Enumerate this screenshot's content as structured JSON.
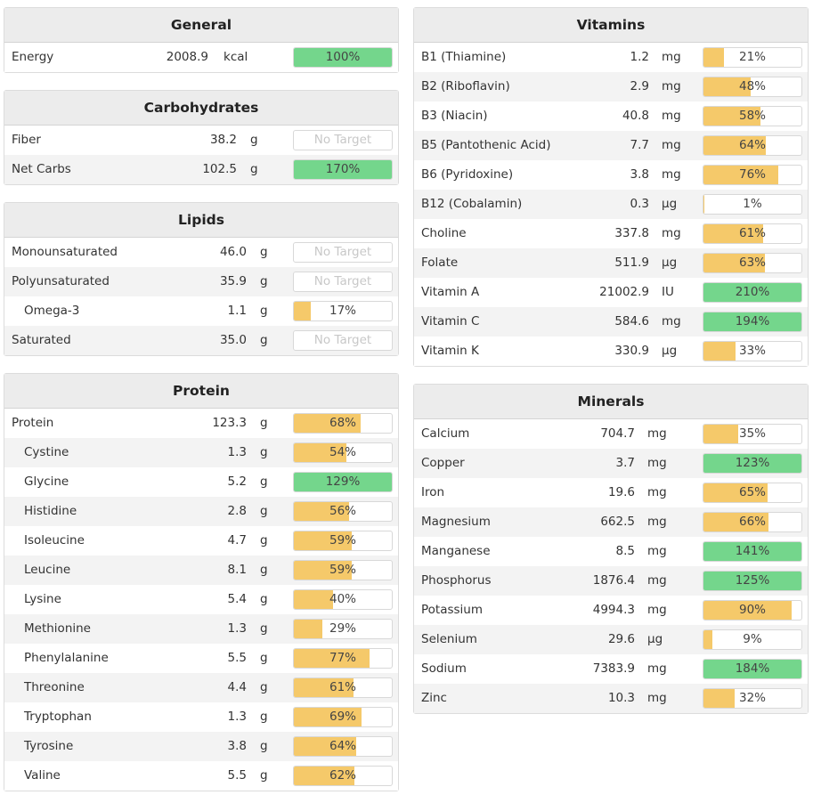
{
  "colors": {
    "high": "#74d68c",
    "low": "#f5c96a",
    "none": "#ffffff"
  },
  "general": {
    "title": "General",
    "rows": [
      {
        "name": "Energy",
        "amount": "2008.9",
        "unit": "kcal",
        "pct": "100%",
        "fill": 1.0,
        "status": "high"
      }
    ]
  },
  "carbohydrates": {
    "title": "Carbohydrates",
    "rows": [
      {
        "name": "Fiber",
        "amount": "38.2",
        "unit": "g",
        "pct": "No Target",
        "fill": 0,
        "status": "none"
      },
      {
        "name": "Net Carbs",
        "amount": "102.5",
        "unit": "g",
        "pct": "170%",
        "fill": 1.0,
        "status": "high"
      }
    ]
  },
  "lipids": {
    "title": "Lipids",
    "rows": [
      {
        "name": "Monounsaturated",
        "amount": "46.0",
        "unit": "g",
        "pct": "No Target",
        "fill": 0,
        "status": "none"
      },
      {
        "name": "Polyunsaturated",
        "amount": "35.9",
        "unit": "g",
        "pct": "No Target",
        "fill": 0,
        "status": "none"
      },
      {
        "name": "Omega-3",
        "amount": "1.1",
        "unit": "g",
        "pct": "17%",
        "fill": 0.17,
        "status": "low",
        "indent": true
      },
      {
        "name": "Saturated",
        "amount": "35.0",
        "unit": "g",
        "pct": "No Target",
        "fill": 0,
        "status": "none"
      }
    ]
  },
  "protein": {
    "title": "Protein",
    "rows": [
      {
        "name": "Protein",
        "amount": "123.3",
        "unit": "g",
        "pct": "68%",
        "fill": 0.68,
        "status": "low"
      },
      {
        "name": "Cystine",
        "amount": "1.3",
        "unit": "g",
        "pct": "54%",
        "fill": 0.54,
        "status": "low",
        "indent": true
      },
      {
        "name": "Glycine",
        "amount": "5.2",
        "unit": "g",
        "pct": "129%",
        "fill": 1.0,
        "status": "high",
        "indent": true
      },
      {
        "name": "Histidine",
        "amount": "2.8",
        "unit": "g",
        "pct": "56%",
        "fill": 0.56,
        "status": "low",
        "indent": true
      },
      {
        "name": "Isoleucine",
        "amount": "4.7",
        "unit": "g",
        "pct": "59%",
        "fill": 0.59,
        "status": "low",
        "indent": true
      },
      {
        "name": "Leucine",
        "amount": "8.1",
        "unit": "g",
        "pct": "59%",
        "fill": 0.59,
        "status": "low",
        "indent": true
      },
      {
        "name": "Lysine",
        "amount": "5.4",
        "unit": "g",
        "pct": "40%",
        "fill": 0.4,
        "status": "low",
        "indent": true
      },
      {
        "name": "Methionine",
        "amount": "1.3",
        "unit": "g",
        "pct": "29%",
        "fill": 0.29,
        "status": "low",
        "indent": true
      },
      {
        "name": "Phenylalanine",
        "amount": "5.5",
        "unit": "g",
        "pct": "77%",
        "fill": 0.77,
        "status": "low",
        "indent": true
      },
      {
        "name": "Threonine",
        "amount": "4.4",
        "unit": "g",
        "pct": "61%",
        "fill": 0.61,
        "status": "low",
        "indent": true
      },
      {
        "name": "Tryptophan",
        "amount": "1.3",
        "unit": "g",
        "pct": "69%",
        "fill": 0.69,
        "status": "low",
        "indent": true
      },
      {
        "name": "Tyrosine",
        "amount": "3.8",
        "unit": "g",
        "pct": "64%",
        "fill": 0.64,
        "status": "low",
        "indent": true
      },
      {
        "name": "Valine",
        "amount": "5.5",
        "unit": "g",
        "pct": "62%",
        "fill": 0.62,
        "status": "low",
        "indent": true
      }
    ]
  },
  "vitamins": {
    "title": "Vitamins",
    "rows": [
      {
        "name": "B1 (Thiamine)",
        "amount": "1.2",
        "unit": "mg",
        "pct": "21%",
        "fill": 0.21,
        "status": "low"
      },
      {
        "name": "B2 (Riboflavin)",
        "amount": "2.9",
        "unit": "mg",
        "pct": "48%",
        "fill": 0.48,
        "status": "low"
      },
      {
        "name": "B3 (Niacin)",
        "amount": "40.8",
        "unit": "mg",
        "pct": "58%",
        "fill": 0.58,
        "status": "low"
      },
      {
        "name": "B5 (Pantothenic Acid)",
        "amount": "7.7",
        "unit": "mg",
        "pct": "64%",
        "fill": 0.64,
        "status": "low"
      },
      {
        "name": "B6 (Pyridoxine)",
        "amount": "3.8",
        "unit": "mg",
        "pct": "76%",
        "fill": 0.76,
        "status": "low"
      },
      {
        "name": "B12 (Cobalamin)",
        "amount": "0.3",
        "unit": "µg",
        "pct": "1%",
        "fill": 0.01,
        "status": "low"
      },
      {
        "name": "Choline",
        "amount": "337.8",
        "unit": "mg",
        "pct": "61%",
        "fill": 0.61,
        "status": "low"
      },
      {
        "name": "Folate",
        "amount": "511.9",
        "unit": "µg",
        "pct": "63%",
        "fill": 0.63,
        "status": "low"
      },
      {
        "name": "Vitamin A",
        "amount": "21002.9",
        "unit": "IU",
        "pct": "210%",
        "fill": 1.0,
        "status": "high"
      },
      {
        "name": "Vitamin C",
        "amount": "584.6",
        "unit": "mg",
        "pct": "194%",
        "fill": 1.0,
        "status": "high"
      },
      {
        "name": "Vitamin K",
        "amount": "330.9",
        "unit": "µg",
        "pct": "33%",
        "fill": 0.33,
        "status": "low"
      }
    ]
  },
  "minerals": {
    "title": "Minerals",
    "rows": [
      {
        "name": "Calcium",
        "amount": "704.7",
        "unit": "mg",
        "pct": "35%",
        "fill": 0.35,
        "status": "low"
      },
      {
        "name": "Copper",
        "amount": "3.7",
        "unit": "mg",
        "pct": "123%",
        "fill": 1.0,
        "status": "high"
      },
      {
        "name": "Iron",
        "amount": "19.6",
        "unit": "mg",
        "pct": "65%",
        "fill": 0.65,
        "status": "low"
      },
      {
        "name": "Magnesium",
        "amount": "662.5",
        "unit": "mg",
        "pct": "66%",
        "fill": 0.66,
        "status": "low"
      },
      {
        "name": "Manganese",
        "amount": "8.5",
        "unit": "mg",
        "pct": "141%",
        "fill": 1.0,
        "status": "high"
      },
      {
        "name": "Phosphorus",
        "amount": "1876.4",
        "unit": "mg",
        "pct": "125%",
        "fill": 1.0,
        "status": "high"
      },
      {
        "name": "Potassium",
        "amount": "4994.3",
        "unit": "mg",
        "pct": "90%",
        "fill": 0.9,
        "status": "low"
      },
      {
        "name": "Selenium",
        "amount": "29.6",
        "unit": "µg",
        "pct": "9%",
        "fill": 0.09,
        "status": "low"
      },
      {
        "name": "Sodium",
        "amount": "7383.9",
        "unit": "mg",
        "pct": "184%",
        "fill": 1.0,
        "status": "high"
      },
      {
        "name": "Zinc",
        "amount": "10.3",
        "unit": "mg",
        "pct": "32%",
        "fill": 0.32,
        "status": "low"
      }
    ]
  }
}
